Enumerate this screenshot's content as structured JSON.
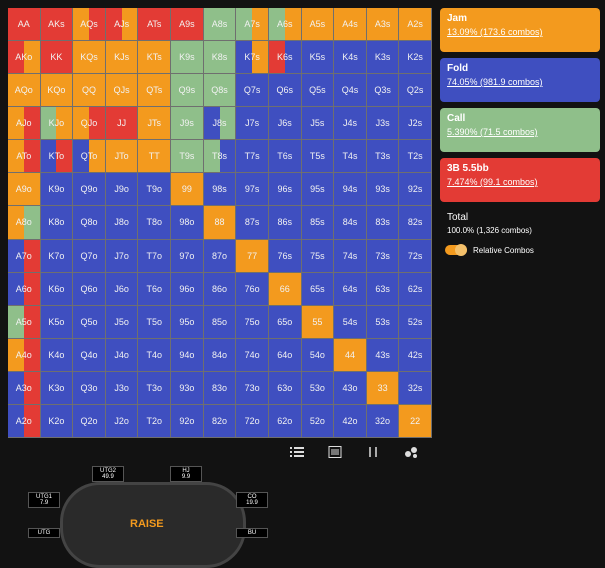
{
  "actions": [
    {
      "name": "Jam",
      "stat": "13.09% (173.6 combos)",
      "color": "#f39a1e"
    },
    {
      "name": "Fold",
      "stat": "74.05% (981.9 combos)",
      "color": "#3f4fc0"
    },
    {
      "name": "Call",
      "stat": "5.390% (71.5 combos)",
      "color": "#8fbf8a"
    },
    {
      "name": "3B 5.5bb",
      "stat": "7.474% (99.1 combos)",
      "color": "#e33b35"
    }
  ],
  "total": {
    "label": "Total",
    "stat": "100.0% (1,326 combos)"
  },
  "toggle": "Relative Combos",
  "grid": [
    [
      {
        "l": "AA",
        "m": [
          3
        ]
      },
      {
        "l": "AKs",
        "m": [
          3
        ]
      },
      {
        "l": "AQs",
        "m": [
          0,
          3
        ]
      },
      {
        "l": "AJs",
        "m": [
          3,
          0
        ]
      },
      {
        "l": "ATs",
        "m": [
          3
        ]
      },
      {
        "l": "A9s",
        "m": [
          3
        ]
      },
      {
        "l": "A8s",
        "m": [
          2
        ]
      },
      {
        "l": "A7s",
        "m": [
          2,
          0
        ]
      },
      {
        "l": "A6s",
        "m": [
          2,
          0
        ]
      },
      {
        "l": "A5s",
        "m": [
          0
        ]
      },
      {
        "l": "A4s",
        "m": [
          0
        ]
      },
      {
        "l": "A3s",
        "m": [
          0
        ]
      },
      {
        "l": "A2s",
        "m": [
          0
        ]
      }
    ],
    [
      {
        "l": "AKo",
        "m": [
          3,
          0
        ]
      },
      {
        "l": "KK",
        "m": [
          3
        ]
      },
      {
        "l": "KQs",
        "m": [
          0
        ]
      },
      {
        "l": "KJs",
        "m": [
          0
        ]
      },
      {
        "l": "KTs",
        "m": [
          0
        ]
      },
      {
        "l": "K9s",
        "m": [
          2
        ]
      },
      {
        "l": "K8s",
        "m": [
          2
        ]
      },
      {
        "l": "K7s",
        "m": [
          1,
          0
        ]
      },
      {
        "l": "K6s",
        "m": [
          3,
          1
        ]
      },
      {
        "l": "K5s",
        "m": [
          1
        ]
      },
      {
        "l": "K4s",
        "m": [
          1
        ]
      },
      {
        "l": "K3s",
        "m": [
          1
        ]
      },
      {
        "l": "K2s",
        "m": [
          1
        ]
      }
    ],
    [
      {
        "l": "AQo",
        "m": [
          0
        ]
      },
      {
        "l": "KQo",
        "m": [
          0
        ]
      },
      {
        "l": "QQ",
        "m": [
          0
        ]
      },
      {
        "l": "QJs",
        "m": [
          0
        ]
      },
      {
        "l": "QTs",
        "m": [
          0
        ]
      },
      {
        "l": "Q9s",
        "m": [
          2
        ]
      },
      {
        "l": "Q8s",
        "m": [
          2
        ]
      },
      {
        "l": "Q7s",
        "m": [
          1
        ]
      },
      {
        "l": "Q6s",
        "m": [
          1
        ]
      },
      {
        "l": "Q5s",
        "m": [
          1
        ]
      },
      {
        "l": "Q4s",
        "m": [
          1
        ]
      },
      {
        "l": "Q3s",
        "m": [
          1
        ]
      },
      {
        "l": "Q2s",
        "m": [
          1
        ]
      }
    ],
    [
      {
        "l": "AJo",
        "m": [
          0,
          3
        ]
      },
      {
        "l": "KJo",
        "m": [
          2,
          0
        ]
      },
      {
        "l": "QJo",
        "m": [
          0,
          3
        ]
      },
      {
        "l": "JJ",
        "m": [
          3
        ]
      },
      {
        "l": "JTs",
        "m": [
          0
        ]
      },
      {
        "l": "J9s",
        "m": [
          2
        ]
      },
      {
        "l": "J8s",
        "m": [
          1,
          2
        ]
      },
      {
        "l": "J7s",
        "m": [
          1
        ]
      },
      {
        "l": "J6s",
        "m": [
          1
        ]
      },
      {
        "l": "J5s",
        "m": [
          1
        ]
      },
      {
        "l": "J4s",
        "m": [
          1
        ]
      },
      {
        "l": "J3s",
        "m": [
          1
        ]
      },
      {
        "l": "J2s",
        "m": [
          1
        ]
      }
    ],
    [
      {
        "l": "ATo",
        "m": [
          0,
          3
        ]
      },
      {
        "l": "KTo",
        "m": [
          1,
          3
        ]
      },
      {
        "l": "QTo",
        "m": [
          1,
          0
        ]
      },
      {
        "l": "JTo",
        "m": [
          0
        ]
      },
      {
        "l": "TT",
        "m": [
          0
        ]
      },
      {
        "l": "T9s",
        "m": [
          2
        ]
      },
      {
        "l": "T8s",
        "m": [
          2,
          1
        ]
      },
      {
        "l": "T7s",
        "m": [
          1
        ]
      },
      {
        "l": "T6s",
        "m": [
          1
        ]
      },
      {
        "l": "T5s",
        "m": [
          1
        ]
      },
      {
        "l": "T4s",
        "m": [
          1
        ]
      },
      {
        "l": "T3s",
        "m": [
          1
        ]
      },
      {
        "l": "T2s",
        "m": [
          1
        ]
      }
    ],
    [
      {
        "l": "A9o",
        "m": [
          0
        ]
      },
      {
        "l": "K9o",
        "m": [
          1
        ]
      },
      {
        "l": "Q9o",
        "m": [
          1
        ]
      },
      {
        "l": "J9o",
        "m": [
          1
        ]
      },
      {
        "l": "T9o",
        "m": [
          1
        ]
      },
      {
        "l": "99",
        "m": [
          0
        ]
      },
      {
        "l": "98s",
        "m": [
          1
        ]
      },
      {
        "l": "97s",
        "m": [
          1
        ]
      },
      {
        "l": "96s",
        "m": [
          1
        ]
      },
      {
        "l": "95s",
        "m": [
          1
        ]
      },
      {
        "l": "94s",
        "m": [
          1
        ]
      },
      {
        "l": "93s",
        "m": [
          1
        ]
      },
      {
        "l": "92s",
        "m": [
          1
        ]
      }
    ],
    [
      {
        "l": "A8o",
        "m": [
          0,
          2
        ]
      },
      {
        "l": "K8o",
        "m": [
          1
        ]
      },
      {
        "l": "Q8o",
        "m": [
          1
        ]
      },
      {
        "l": "J8o",
        "m": [
          1
        ]
      },
      {
        "l": "T8o",
        "m": [
          1
        ]
      },
      {
        "l": "98o",
        "m": [
          1
        ]
      },
      {
        "l": "88",
        "m": [
          0
        ]
      },
      {
        "l": "87s",
        "m": [
          1
        ]
      },
      {
        "l": "86s",
        "m": [
          1
        ]
      },
      {
        "l": "85s",
        "m": [
          1
        ]
      },
      {
        "l": "84s",
        "m": [
          1
        ]
      },
      {
        "l": "83s",
        "m": [
          1
        ]
      },
      {
        "l": "82s",
        "m": [
          1
        ]
      }
    ],
    [
      {
        "l": "A7o",
        "m": [
          1,
          3
        ]
      },
      {
        "l": "K7o",
        "m": [
          1
        ]
      },
      {
        "l": "Q7o",
        "m": [
          1
        ]
      },
      {
        "l": "J7o",
        "m": [
          1
        ]
      },
      {
        "l": "T7o",
        "m": [
          1
        ]
      },
      {
        "l": "97o",
        "m": [
          1
        ]
      },
      {
        "l": "87o",
        "m": [
          1
        ]
      },
      {
        "l": "77",
        "m": [
          0
        ]
      },
      {
        "l": "76s",
        "m": [
          1
        ]
      },
      {
        "l": "75s",
        "m": [
          1
        ]
      },
      {
        "l": "74s",
        "m": [
          1
        ]
      },
      {
        "l": "73s",
        "m": [
          1
        ]
      },
      {
        "l": "72s",
        "m": [
          1
        ]
      }
    ],
    [
      {
        "l": "A6o",
        "m": [
          1,
          3
        ]
      },
      {
        "l": "K6o",
        "m": [
          1
        ]
      },
      {
        "l": "Q6o",
        "m": [
          1
        ]
      },
      {
        "l": "J6o",
        "m": [
          1
        ]
      },
      {
        "l": "T6o",
        "m": [
          1
        ]
      },
      {
        "l": "96o",
        "m": [
          1
        ]
      },
      {
        "l": "86o",
        "m": [
          1
        ]
      },
      {
        "l": "76o",
        "m": [
          1
        ]
      },
      {
        "l": "66",
        "m": [
          0
        ]
      },
      {
        "l": "65s",
        "m": [
          1
        ]
      },
      {
        "l": "64s",
        "m": [
          1
        ]
      },
      {
        "l": "63s",
        "m": [
          1
        ]
      },
      {
        "l": "62s",
        "m": [
          1
        ]
      }
    ],
    [
      {
        "l": "A5o",
        "m": [
          2,
          3
        ]
      },
      {
        "l": "K5o",
        "m": [
          1
        ]
      },
      {
        "l": "Q5o",
        "m": [
          1
        ]
      },
      {
        "l": "J5o",
        "m": [
          1
        ]
      },
      {
        "l": "T5o",
        "m": [
          1
        ]
      },
      {
        "l": "95o",
        "m": [
          1
        ]
      },
      {
        "l": "85o",
        "m": [
          1
        ]
      },
      {
        "l": "75o",
        "m": [
          1
        ]
      },
      {
        "l": "65o",
        "m": [
          1
        ]
      },
      {
        "l": "55",
        "m": [
          0
        ]
      },
      {
        "l": "54s",
        "m": [
          1
        ]
      },
      {
        "l": "53s",
        "m": [
          1
        ]
      },
      {
        "l": "52s",
        "m": [
          1
        ]
      }
    ],
    [
      {
        "l": "A4o",
        "m": [
          0,
          3
        ]
      },
      {
        "l": "K4o",
        "m": [
          1
        ]
      },
      {
        "l": "Q4o",
        "m": [
          1
        ]
      },
      {
        "l": "J4o",
        "m": [
          1
        ]
      },
      {
        "l": "T4o",
        "m": [
          1
        ]
      },
      {
        "l": "94o",
        "m": [
          1
        ]
      },
      {
        "l": "84o",
        "m": [
          1
        ]
      },
      {
        "l": "74o",
        "m": [
          1
        ]
      },
      {
        "l": "64o",
        "m": [
          1
        ]
      },
      {
        "l": "54o",
        "m": [
          1
        ]
      },
      {
        "l": "44",
        "m": [
          0
        ]
      },
      {
        "l": "43s",
        "m": [
          1
        ]
      },
      {
        "l": "42s",
        "m": [
          1
        ]
      }
    ],
    [
      {
        "l": "A3o",
        "m": [
          1,
          3
        ]
      },
      {
        "l": "K3o",
        "m": [
          1
        ]
      },
      {
        "l": "Q3o",
        "m": [
          1
        ]
      },
      {
        "l": "J3o",
        "m": [
          1
        ]
      },
      {
        "l": "T3o",
        "m": [
          1
        ]
      },
      {
        "l": "93o",
        "m": [
          1
        ]
      },
      {
        "l": "83o",
        "m": [
          1
        ]
      },
      {
        "l": "73o",
        "m": [
          1
        ]
      },
      {
        "l": "63o",
        "m": [
          1
        ]
      },
      {
        "l": "53o",
        "m": [
          1
        ]
      },
      {
        "l": "43o",
        "m": [
          1
        ]
      },
      {
        "l": "33",
        "m": [
          0
        ]
      },
      {
        "l": "32s",
        "m": [
          1
        ]
      }
    ],
    [
      {
        "l": "A2o",
        "m": [
          1,
          3
        ]
      },
      {
        "l": "K2o",
        "m": [
          1
        ]
      },
      {
        "l": "Q2o",
        "m": [
          1
        ]
      },
      {
        "l": "J2o",
        "m": [
          1
        ]
      },
      {
        "l": "T2o",
        "m": [
          1
        ]
      },
      {
        "l": "92o",
        "m": [
          1
        ]
      },
      {
        "l": "82o",
        "m": [
          1
        ]
      },
      {
        "l": "72o",
        "m": [
          1
        ]
      },
      {
        "l": "62o",
        "m": [
          1
        ]
      },
      {
        "l": "52o",
        "m": [
          1
        ]
      },
      {
        "l": "42o",
        "m": [
          1
        ]
      },
      {
        "l": "32o",
        "m": [
          1
        ]
      },
      {
        "l": "22",
        "m": [
          0
        ]
      }
    ]
  ],
  "table": {
    "logo": "RAISE",
    "seats": [
      {
        "name": "UTG2",
        "stack": "49.9"
      },
      {
        "name": "HJ",
        "stack": "9.9"
      },
      {
        "name": "UTG1",
        "stack": "7.9"
      },
      {
        "name": "CO",
        "stack": "19.9"
      },
      {
        "name": "UTG",
        "stack": ""
      },
      {
        "name": "BU",
        "stack": ""
      }
    ]
  }
}
